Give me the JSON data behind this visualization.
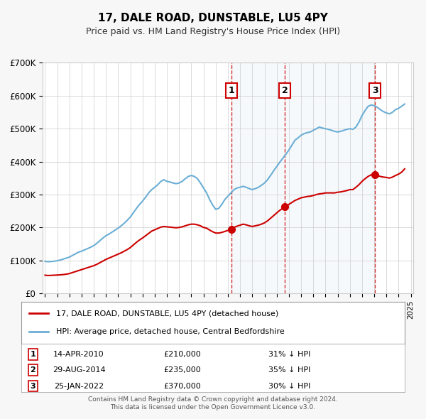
{
  "title": "17, DALE ROAD, DUNSTABLE, LU5 4PY",
  "subtitle": "Price paid vs. HM Land Registry's House Price Index (HPI)",
  "hpi_color": "#6baed6",
  "price_color": "#cc0000",
  "background_color": "#f7f7f7",
  "plot_bg_color": "#ffffff",
  "shade_color": "#dce9f5",
  "grid_color": "#cccccc",
  "ylabel": "",
  "xlabel": "",
  "ylim": [
    0,
    700000
  ],
  "yticks": [
    0,
    100000,
    200000,
    300000,
    400000,
    500000,
    600000,
    700000
  ],
  "ytick_labels": [
    "£0",
    "£100K",
    "£200K",
    "£300K",
    "£400K",
    "£500K",
    "£600K",
    "£700K"
  ],
  "transactions": [
    {
      "label": "1",
      "date": "14-APR-2010",
      "price": 210000,
      "pct": "31%",
      "x": 2010.286
    },
    {
      "label": "2",
      "date": "29-AUG-2014",
      "price": 235000,
      "pct": "35%",
      "x": 2014.66
    },
    {
      "label": "3",
      "date": "25-JAN-2022",
      "price": 370000,
      "pct": "30%",
      "x": 2022.07
    }
  ],
  "legend_label_price": "17, DALE ROAD, DUNSTABLE, LU5 4PY (detached house)",
  "legend_label_hpi": "HPI: Average price, detached house, Central Bedfordshire",
  "footer1": "Contains HM Land Registry data © Crown copyright and database right 2024.",
  "footer2": "This data is licensed under the Open Government Licence v3.0.",
  "hpi_data_x": [
    1995.0,
    1995.25,
    1995.5,
    1995.75,
    1996.0,
    1996.25,
    1996.5,
    1996.75,
    1997.0,
    1997.25,
    1997.5,
    1997.75,
    1998.0,
    1998.25,
    1998.5,
    1998.75,
    1999.0,
    1999.25,
    1999.5,
    1999.75,
    2000.0,
    2000.25,
    2000.5,
    2000.75,
    2001.0,
    2001.25,
    2001.5,
    2001.75,
    2002.0,
    2002.25,
    2002.5,
    2002.75,
    2003.0,
    2003.25,
    2003.5,
    2003.75,
    2004.0,
    2004.25,
    2004.5,
    2004.75,
    2005.0,
    2005.25,
    2005.5,
    2005.75,
    2006.0,
    2006.25,
    2006.5,
    2006.75,
    2007.0,
    2007.25,
    2007.5,
    2007.75,
    2008.0,
    2008.25,
    2008.5,
    2008.75,
    2009.0,
    2009.25,
    2009.5,
    2009.75,
    2010.0,
    2010.25,
    2010.5,
    2010.75,
    2011.0,
    2011.25,
    2011.5,
    2011.75,
    2012.0,
    2012.25,
    2012.5,
    2012.75,
    2013.0,
    2013.25,
    2013.5,
    2013.75,
    2014.0,
    2014.25,
    2014.5,
    2014.75,
    2015.0,
    2015.25,
    2015.5,
    2015.75,
    2016.0,
    2016.25,
    2016.5,
    2016.75,
    2017.0,
    2017.25,
    2017.5,
    2017.75,
    2018.0,
    2018.25,
    2018.5,
    2018.75,
    2019.0,
    2019.25,
    2019.5,
    2019.75,
    2020.0,
    2020.25,
    2020.5,
    2020.75,
    2021.0,
    2021.25,
    2021.5,
    2021.75,
    2022.0,
    2022.25,
    2022.5,
    2022.75,
    2023.0,
    2023.25,
    2023.5,
    2023.75,
    2024.0,
    2024.25,
    2024.5
  ],
  "hpi_data_y": [
    97000,
    96000,
    96500,
    97500,
    99000,
    101000,
    104000,
    107000,
    110000,
    115000,
    120000,
    125000,
    128000,
    132000,
    136000,
    140000,
    145000,
    152000,
    160000,
    168000,
    175000,
    180000,
    186000,
    192000,
    198000,
    205000,
    213000,
    222000,
    232000,
    245000,
    258000,
    270000,
    280000,
    292000,
    305000,
    315000,
    322000,
    330000,
    340000,
    345000,
    340000,
    338000,
    335000,
    333000,
    335000,
    340000,
    348000,
    355000,
    358000,
    355000,
    348000,
    335000,
    320000,
    305000,
    285000,
    268000,
    255000,
    258000,
    270000,
    285000,
    295000,
    305000,
    315000,
    320000,
    322000,
    325000,
    322000,
    318000,
    315000,
    318000,
    322000,
    328000,
    335000,
    345000,
    358000,
    372000,
    385000,
    398000,
    410000,
    422000,
    435000,
    450000,
    465000,
    472000,
    480000,
    485000,
    488000,
    490000,
    495000,
    500000,
    505000,
    502000,
    500000,
    498000,
    495000,
    492000,
    490000,
    492000,
    495000,
    498000,
    500000,
    498000,
    505000,
    520000,
    540000,
    555000,
    568000,
    572000,
    570000,
    565000,
    558000,
    552000,
    548000,
    545000,
    550000,
    558000,
    562000,
    568000,
    575000
  ],
  "price_data_x": [
    1995.0,
    1995.25,
    1995.5,
    1995.75,
    1996.0,
    1996.25,
    1996.5,
    1996.75,
    1997.0,
    1997.25,
    1997.5,
    1997.75,
    1998.0,
    1998.25,
    1998.5,
    1998.75,
    1999.0,
    1999.25,
    1999.5,
    1999.75,
    2000.0,
    2000.25,
    2000.5,
    2000.75,
    2001.0,
    2001.25,
    2001.5,
    2001.75,
    2002.0,
    2002.25,
    2002.5,
    2002.75,
    2003.0,
    2003.25,
    2003.5,
    2003.75,
    2004.0,
    2004.25,
    2004.5,
    2004.75,
    2005.0,
    2005.25,
    2005.5,
    2005.75,
    2006.0,
    2006.25,
    2006.5,
    2006.75,
    2007.0,
    2007.25,
    2007.5,
    2007.75,
    2008.0,
    2008.25,
    2008.5,
    2008.75,
    2009.0,
    2009.25,
    2009.5,
    2009.75,
    2010.0,
    2010.25,
    2010.5,
    2010.75,
    2011.0,
    2011.25,
    2011.5,
    2011.75,
    2012.0,
    2012.25,
    2012.5,
    2012.75,
    2013.0,
    2013.25,
    2013.5,
    2013.75,
    2014.0,
    2014.25,
    2014.5,
    2014.75,
    2015.0,
    2015.25,
    2015.5,
    2015.75,
    2016.0,
    2016.25,
    2016.5,
    2016.75,
    2017.0,
    2017.25,
    2017.5,
    2017.75,
    2018.0,
    2018.25,
    2018.5,
    2018.75,
    2019.0,
    2019.25,
    2019.5,
    2019.75,
    2020.0,
    2020.25,
    2020.5,
    2020.75,
    2021.0,
    2021.25,
    2021.5,
    2021.75,
    2022.0,
    2022.25,
    2022.5,
    2022.75,
    2023.0,
    2023.25,
    2023.5,
    2023.75,
    2024.0,
    2024.25,
    2024.5
  ],
  "price_data_y": [
    55000,
    54000,
    54500,
    55000,
    55500,
    56000,
    57000,
    58000,
    60000,
    63000,
    66000,
    69000,
    72000,
    75000,
    78000,
    81000,
    84000,
    88000,
    93000,
    98000,
    103000,
    107000,
    111000,
    115000,
    119000,
    123000,
    128000,
    133000,
    139000,
    147000,
    155000,
    162000,
    168000,
    175000,
    182000,
    189000,
    193000,
    197000,
    201000,
    203000,
    202000,
    201000,
    200000,
    199000,
    200000,
    202000,
    205000,
    208000,
    210000,
    210000,
    208000,
    205000,
    200000,
    198000,
    192000,
    187000,
    183000,
    183000,
    185000,
    188000,
    191000,
    195000,
    200000,
    204000,
    207000,
    210000,
    208000,
    205000,
    203000,
    205000,
    207000,
    210000,
    214000,
    220000,
    228000,
    236000,
    244000,
    252000,
    258000,
    264000,
    270000,
    276000,
    282000,
    286000,
    290000,
    292000,
    294000,
    295000,
    297000,
    300000,
    302000,
    303000,
    305000,
    305000,
    305000,
    305000,
    307000,
    308000,
    310000,
    312000,
    315000,
    315000,
    322000,
    330000,
    340000,
    348000,
    355000,
    360000,
    360000,
    358000,
    355000,
    353000,
    352000,
    350000,
    353000,
    358000,
    362000,
    368000,
    378000
  ],
  "xticks": [
    1995,
    1996,
    1997,
    1998,
    1999,
    2000,
    2001,
    2002,
    2003,
    2004,
    2005,
    2006,
    2007,
    2008,
    2009,
    2010,
    2011,
    2012,
    2013,
    2014,
    2015,
    2016,
    2017,
    2018,
    2019,
    2020,
    2021,
    2022,
    2023,
    2024,
    2025
  ],
  "xlim": [
    1994.8,
    2025.2
  ]
}
